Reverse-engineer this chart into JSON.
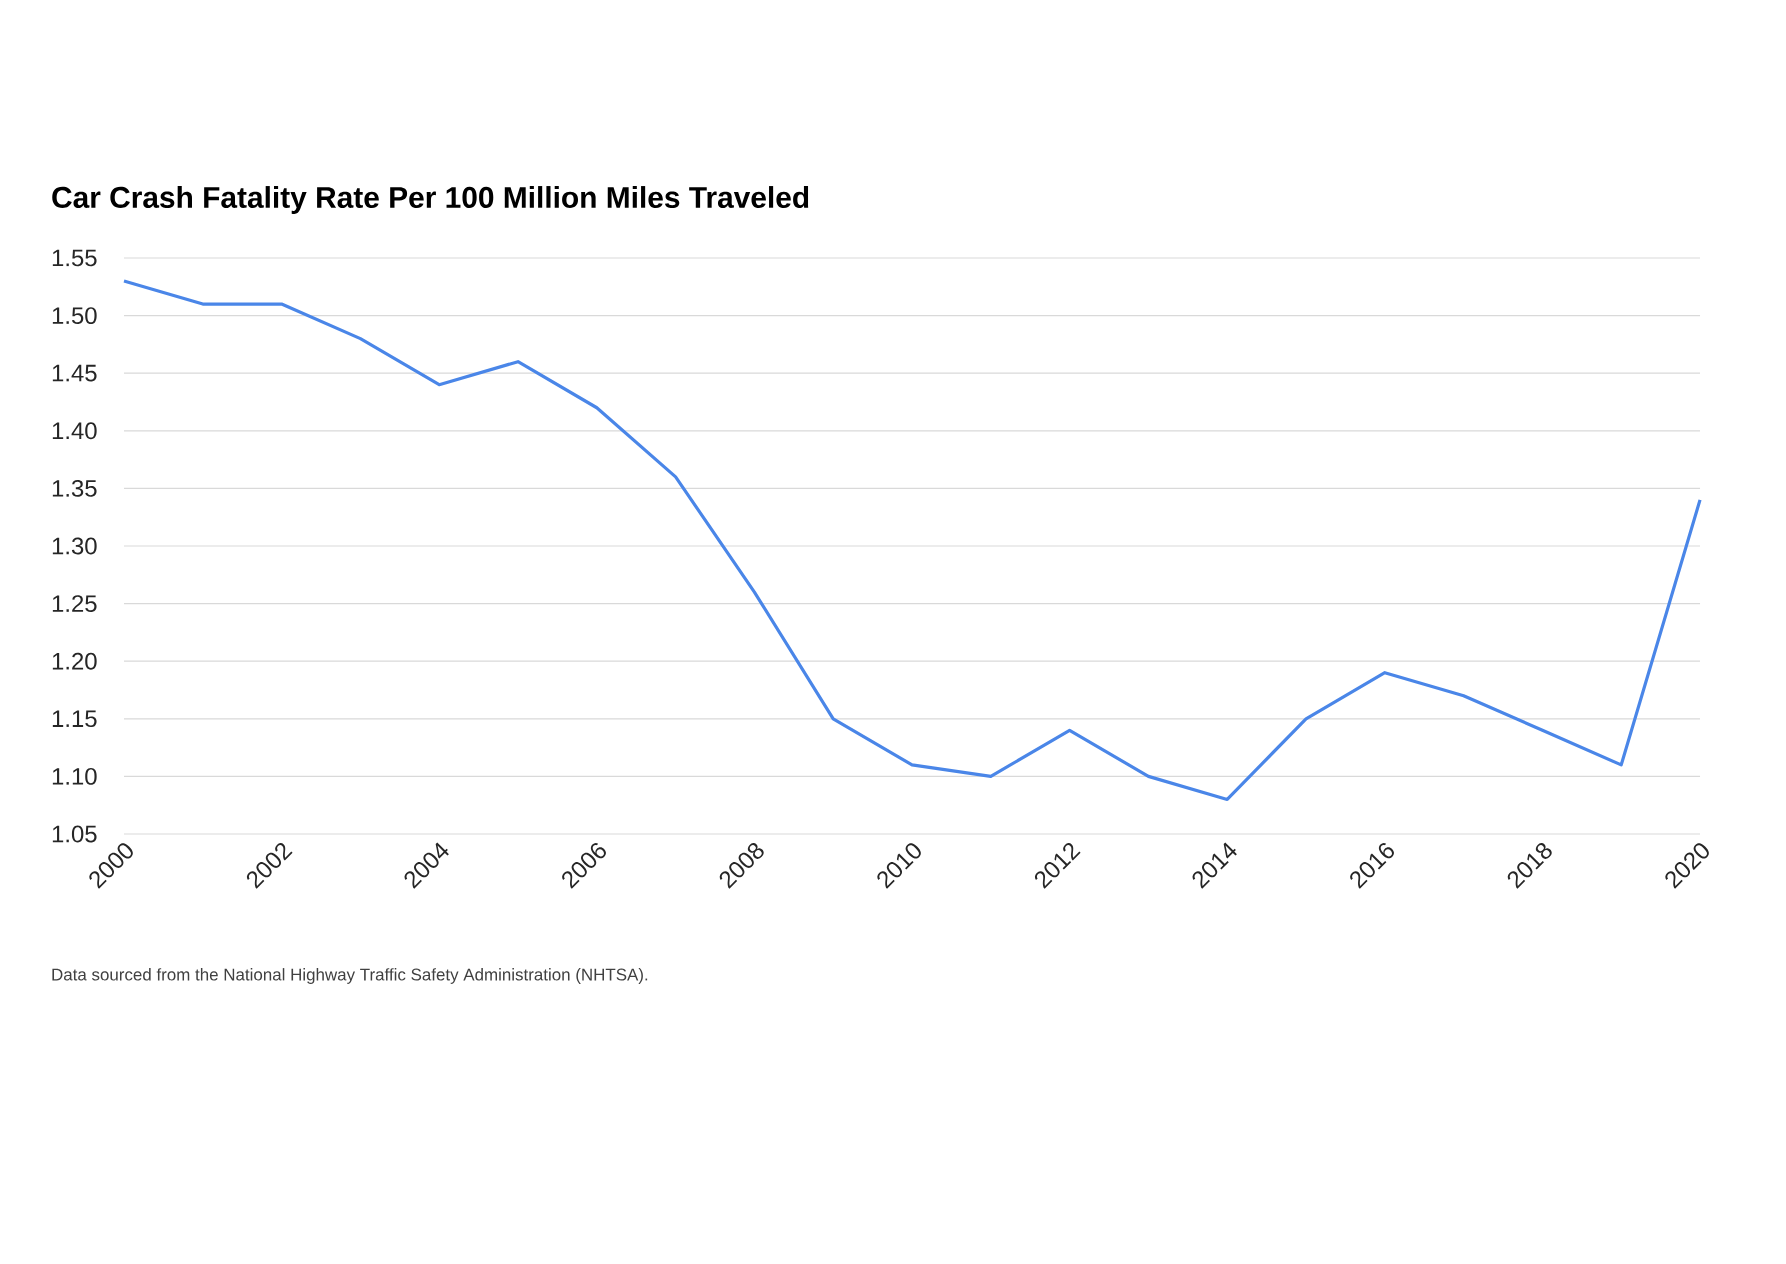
{
  "chart_data": {
    "type": "line",
    "title": "Car Crash Fatality Rate Per 100 Million Miles Traveled",
    "annotations": [
      "Data sourced from the National Highway Traffic Safety Administration (NHTSA)."
    ],
    "x": [
      2000,
      2001,
      2002,
      2003,
      2004,
      2005,
      2006,
      2007,
      2008,
      2009,
      2010,
      2011,
      2012,
      2013,
      2014,
      2015,
      2016,
      2017,
      2018,
      2019,
      2020
    ],
    "series": [
      {
        "color": "#4a86e8",
        "values": [
          1.53,
          1.51,
          1.51,
          1.48,
          1.44,
          1.46,
          1.42,
          1.36,
          1.26,
          1.15,
          1.11,
          1.1,
          1.14,
          1.1,
          1.08,
          1.15,
          1.19,
          1.17,
          1.14,
          1.11,
          1.34
        ]
      }
    ],
    "xlim": [
      2000,
      2020
    ],
    "xticks": [
      2000,
      2002,
      2004,
      2006,
      2008,
      2010,
      2012,
      2014,
      2016,
      2018,
      2020
    ],
    "ylim": [
      1.05,
      1.55
    ],
    "yticks": [
      {
        "value": 1.05,
        "label": "1.05"
      },
      {
        "value": 1.1,
        "label": "1.10"
      },
      {
        "value": 1.15,
        "label": "1.15"
      },
      {
        "value": 1.2,
        "label": "1.20"
      },
      {
        "value": 1.25,
        "label": "1.25"
      },
      {
        "value": 1.3,
        "label": "1.30"
      },
      {
        "value": 1.35,
        "label": "1.35"
      },
      {
        "value": 1.4,
        "label": "1.40"
      },
      {
        "value": 1.45,
        "label": "1.45"
      },
      {
        "value": 1.5,
        "label": "1.50"
      },
      {
        "value": 1.55,
        "label": "1.55"
      }
    ],
    "grid": "y"
  }
}
